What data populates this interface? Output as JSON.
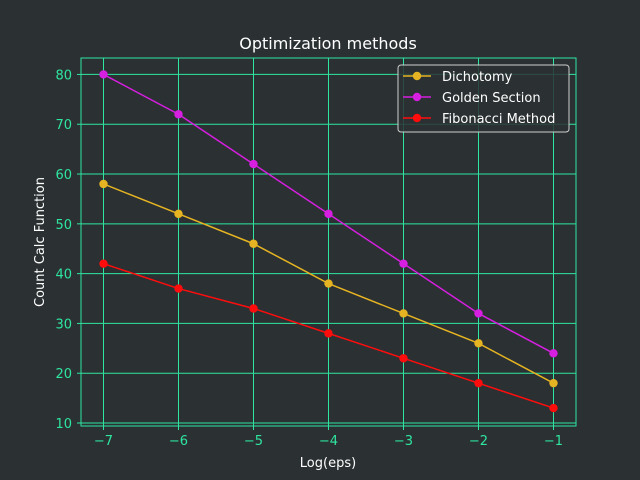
{
  "chart_data": {
    "type": "line",
    "title": "Optimization methods",
    "xlabel": "Log(eps)",
    "ylabel": "Count Calc Function",
    "x": [
      -7,
      -6,
      -5,
      -4,
      -3,
      -2,
      -1
    ],
    "xlim": [
      -7.3,
      -0.7
    ],
    "ylim": [
      9.4,
      83.3
    ],
    "xticks": [
      -7,
      -6,
      -5,
      -4,
      -3,
      -2,
      -1
    ],
    "xtick_labels": [
      "−7",
      "−6",
      "−5",
      "−4",
      "−3",
      "−2",
      "−1"
    ],
    "yticks": [
      10,
      20,
      30,
      40,
      50,
      60,
      70,
      80
    ],
    "ytick_labels": [
      "10",
      "20",
      "30",
      "40",
      "50",
      "60",
      "70",
      "80"
    ],
    "grid": true,
    "legend_position": "top-right",
    "series": [
      {
        "name": "Dichotomy",
        "color": "#e6b422",
        "values": [
          58,
          52,
          46,
          38,
          32,
          26,
          18
        ]
      },
      {
        "name": "Golden Section",
        "color": "#d61fe0",
        "values": [
          80,
          72,
          62,
          52,
          42,
          32,
          24
        ]
      },
      {
        "name": "Fibonacci Method",
        "color": "#ff0d0d",
        "values": [
          42,
          37,
          33,
          28,
          23,
          18,
          13
        ]
      }
    ]
  },
  "style": {
    "background": "#2b3033",
    "grid_color": "#2ee6a0",
    "text_color": "#ffffff",
    "tick_color": "#2ee6a0"
  }
}
